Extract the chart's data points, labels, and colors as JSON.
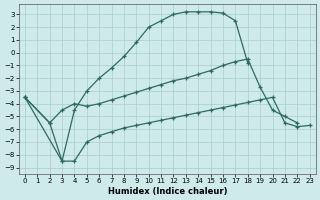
{
  "xlabel": "Humidex (Indice chaleur)",
  "xlim": [
    -0.5,
    23.5
  ],
  "ylim": [
    -9.5,
    3.8
  ],
  "yticks": [
    3,
    2,
    1,
    0,
    -1,
    -2,
    -3,
    -4,
    -5,
    -6,
    -7,
    -8,
    -9
  ],
  "xticks": [
    0,
    1,
    2,
    3,
    4,
    5,
    6,
    7,
    8,
    9,
    10,
    11,
    12,
    13,
    14,
    15,
    16,
    17,
    18,
    19,
    20,
    21,
    22,
    23
  ],
  "line_color": "#2e6b5e",
  "bg_color": "#ceeaea",
  "grid_color": "#a8cccc",
  "lines": [
    {
      "x": [
        0,
        3,
        4,
        5,
        6,
        7,
        8,
        9,
        10,
        11,
        12,
        13,
        14,
        15,
        16,
        17,
        18
      ],
      "y": [
        -3.5,
        -8.5,
        -4.5,
        -3.0,
        -2.0,
        -1.2,
        -0.3,
        0.8,
        2.0,
        2.5,
        3.0,
        3.2,
        3.2,
        3.2,
        3.1,
        2.5,
        -0.8
      ]
    },
    {
      "x": [
        0,
        2,
        3,
        4,
        5,
        6,
        7,
        8,
        9,
        10,
        11,
        12,
        13,
        14,
        15,
        16,
        17,
        18,
        19,
        20,
        21,
        22
      ],
      "y": [
        -3.5,
        -5.5,
        -4.5,
        -4.0,
        -4.2,
        -4.0,
        -3.7,
        -3.4,
        -3.1,
        -2.8,
        -2.5,
        -2.2,
        -2.0,
        -1.7,
        -1.4,
        -1.0,
        -0.7,
        -0.5,
        -2.7,
        -4.5,
        -5.0,
        -5.5
      ]
    },
    {
      "x": [
        0,
        2,
        3,
        4,
        5,
        6,
        7,
        8,
        9,
        10,
        11,
        12,
        13,
        14,
        15,
        16,
        17,
        18,
        19,
        20,
        21,
        22,
        23
      ],
      "y": [
        -3.5,
        -5.5,
        -8.5,
        -8.5,
        -7.0,
        -6.5,
        -6.2,
        -5.9,
        -5.7,
        -5.5,
        -5.3,
        -5.1,
        -4.9,
        -4.7,
        -4.5,
        -4.3,
        -4.1,
        -3.9,
        -3.7,
        -3.5,
        -5.5,
        -5.8,
        -5.7
      ]
    }
  ]
}
